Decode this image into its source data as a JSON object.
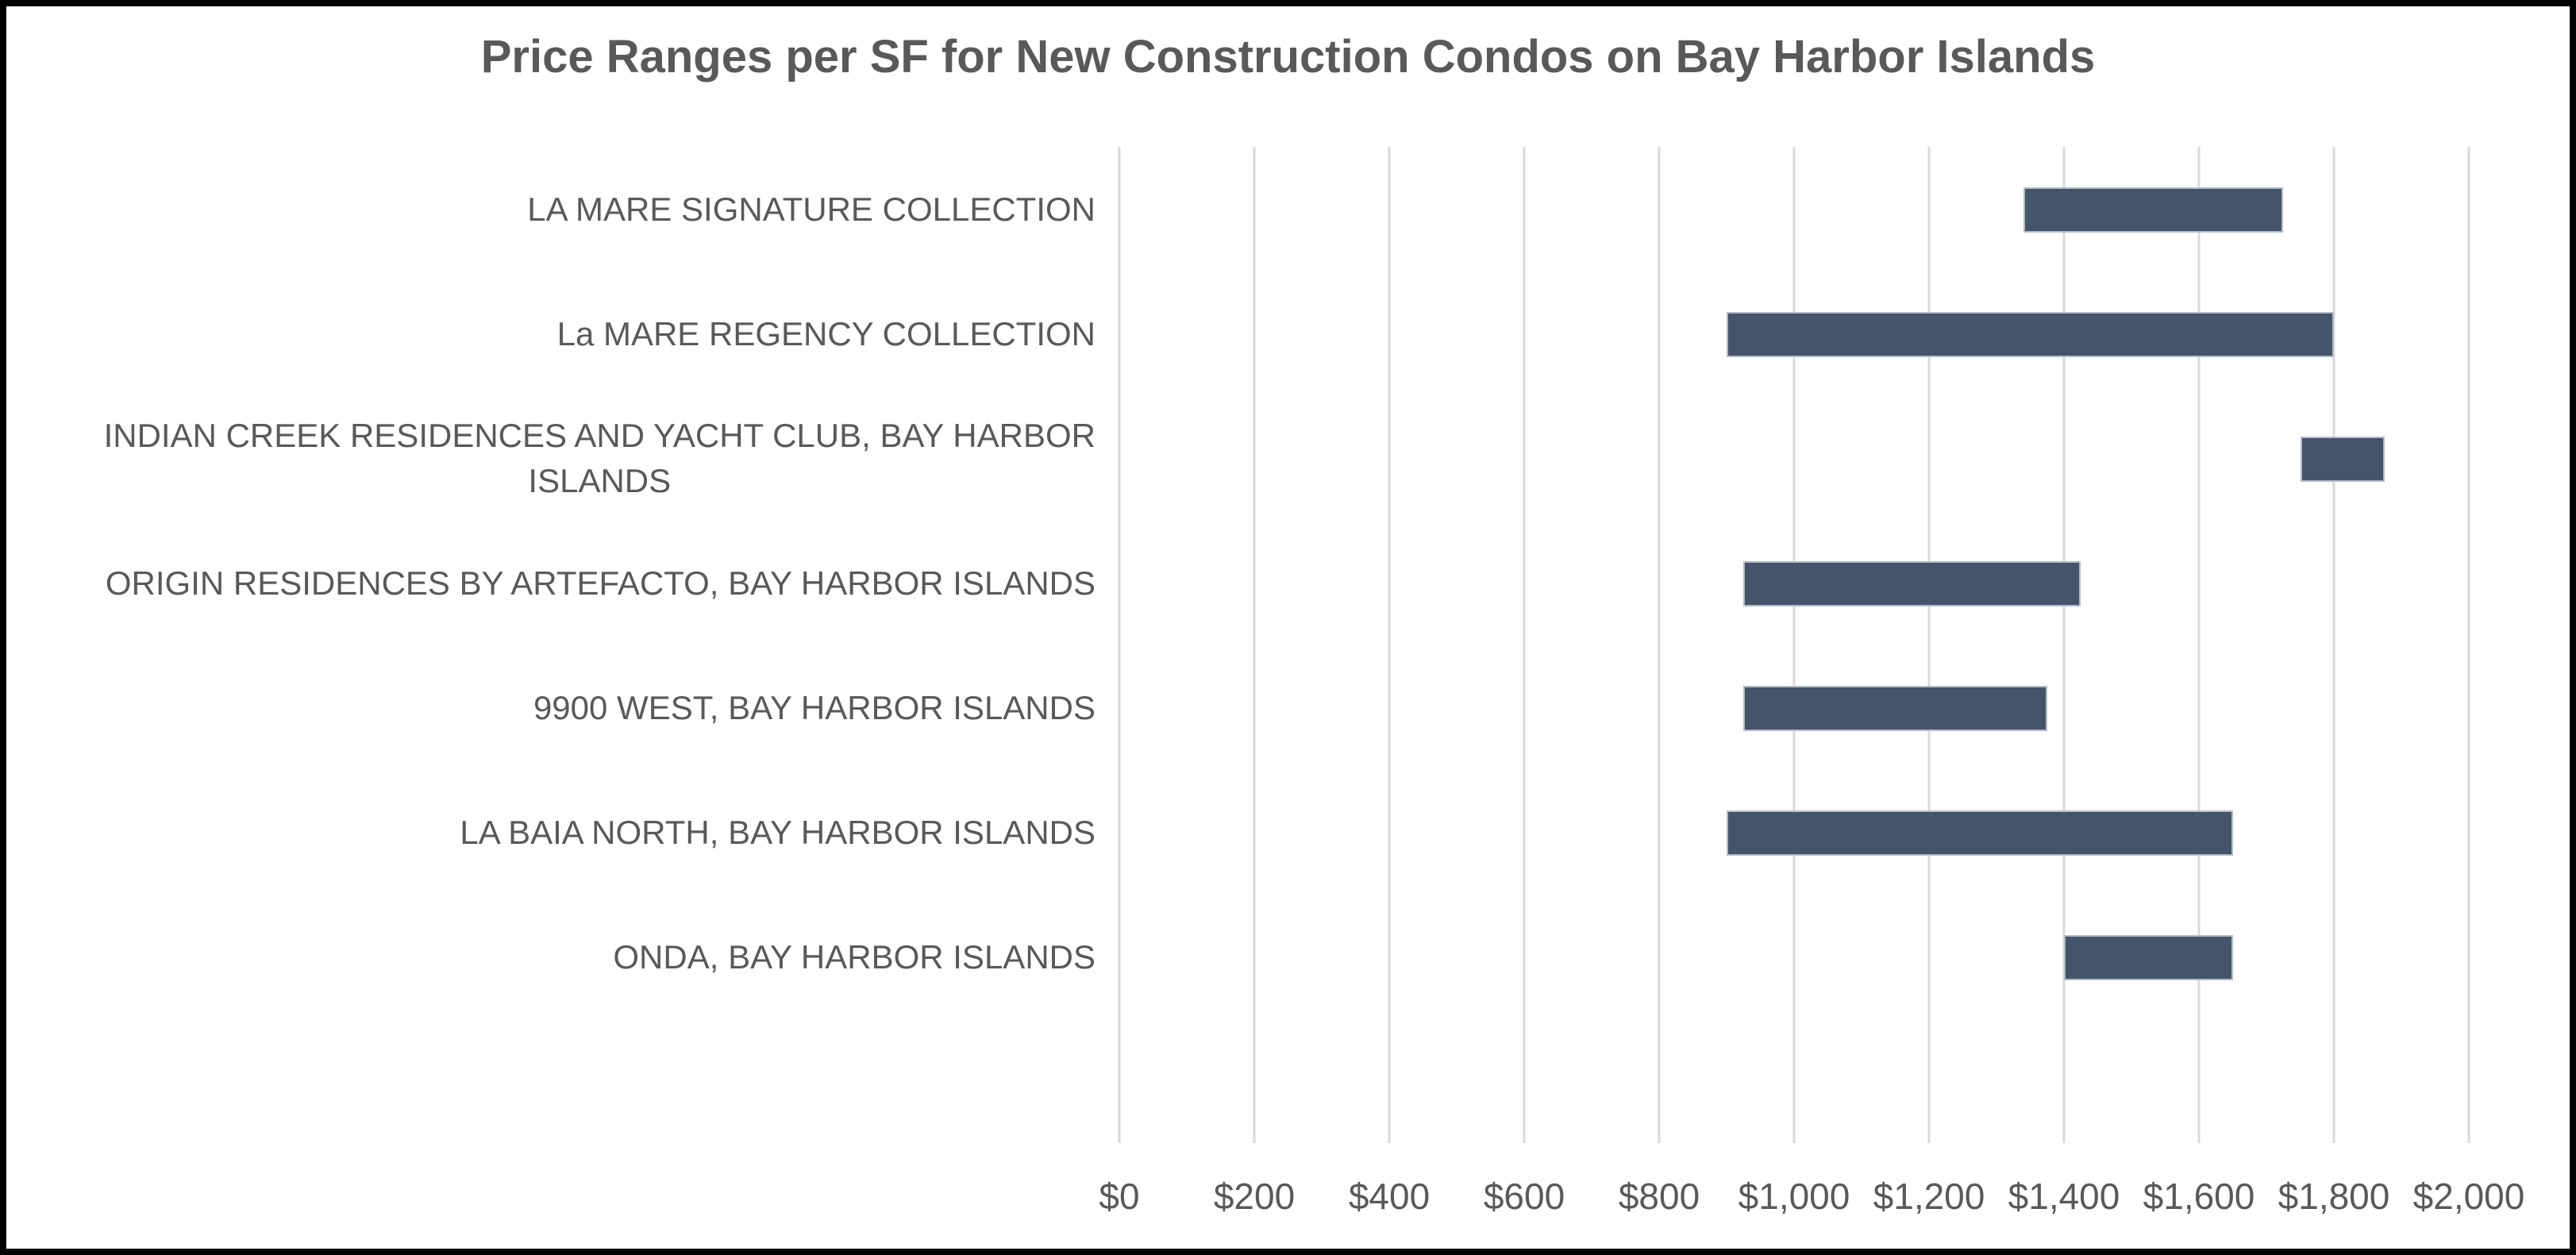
{
  "frame": {
    "background": "#FFFFFF",
    "border_color": "#000000"
  },
  "chart_data": {
    "type": "bar",
    "subtype": "horizontal-floating-range",
    "title": "Price Ranges per SF for New Construction Condos on Bay Harbor Islands",
    "xlabel": "",
    "ylabel": "",
    "legend": "none",
    "grid": {
      "vertical": true,
      "horizontal": false
    },
    "x_axis": {
      "min": 0,
      "max": 2000,
      "step": 200,
      "tick_labels": [
        "$0",
        "$200",
        "$400",
        "$600",
        "$800",
        "$1,000",
        "$1,200",
        "$1,400",
        "$1,600",
        "$1,800",
        "$2,000"
      ]
    },
    "categories": [
      "LA MARE SIGNATURE COLLECTION",
      "La MARE REGENCY COLLECTION",
      "INDIAN CREEK RESIDENCES AND YACHT CLUB, BAY HARBOR\nISLANDS",
      "ORIGIN RESIDENCES BY ARTEFACTO, BAY HARBOR ISLANDS",
      "9900 WEST, BAY HARBOR ISLANDS",
      "LA BAIA NORTH, BAY HARBOR ISLANDS",
      "ONDA, BAY HARBOR ISLANDS"
    ],
    "ranges": [
      {
        "min": 1340,
        "max": 1725
      },
      {
        "min": 900,
        "max": 1800
      },
      {
        "min": 1750,
        "max": 1875
      },
      {
        "min": 925,
        "max": 1425
      },
      {
        "min": 925,
        "max": 1375
      },
      {
        "min": 900,
        "max": 1650
      },
      {
        "min": 1400,
        "max": 1650
      }
    ],
    "colors": {
      "bar_fill": "#44546A",
      "bar_border": "#B3BAC8",
      "gridline": "#D9D9D9",
      "text": "#595959"
    }
  }
}
